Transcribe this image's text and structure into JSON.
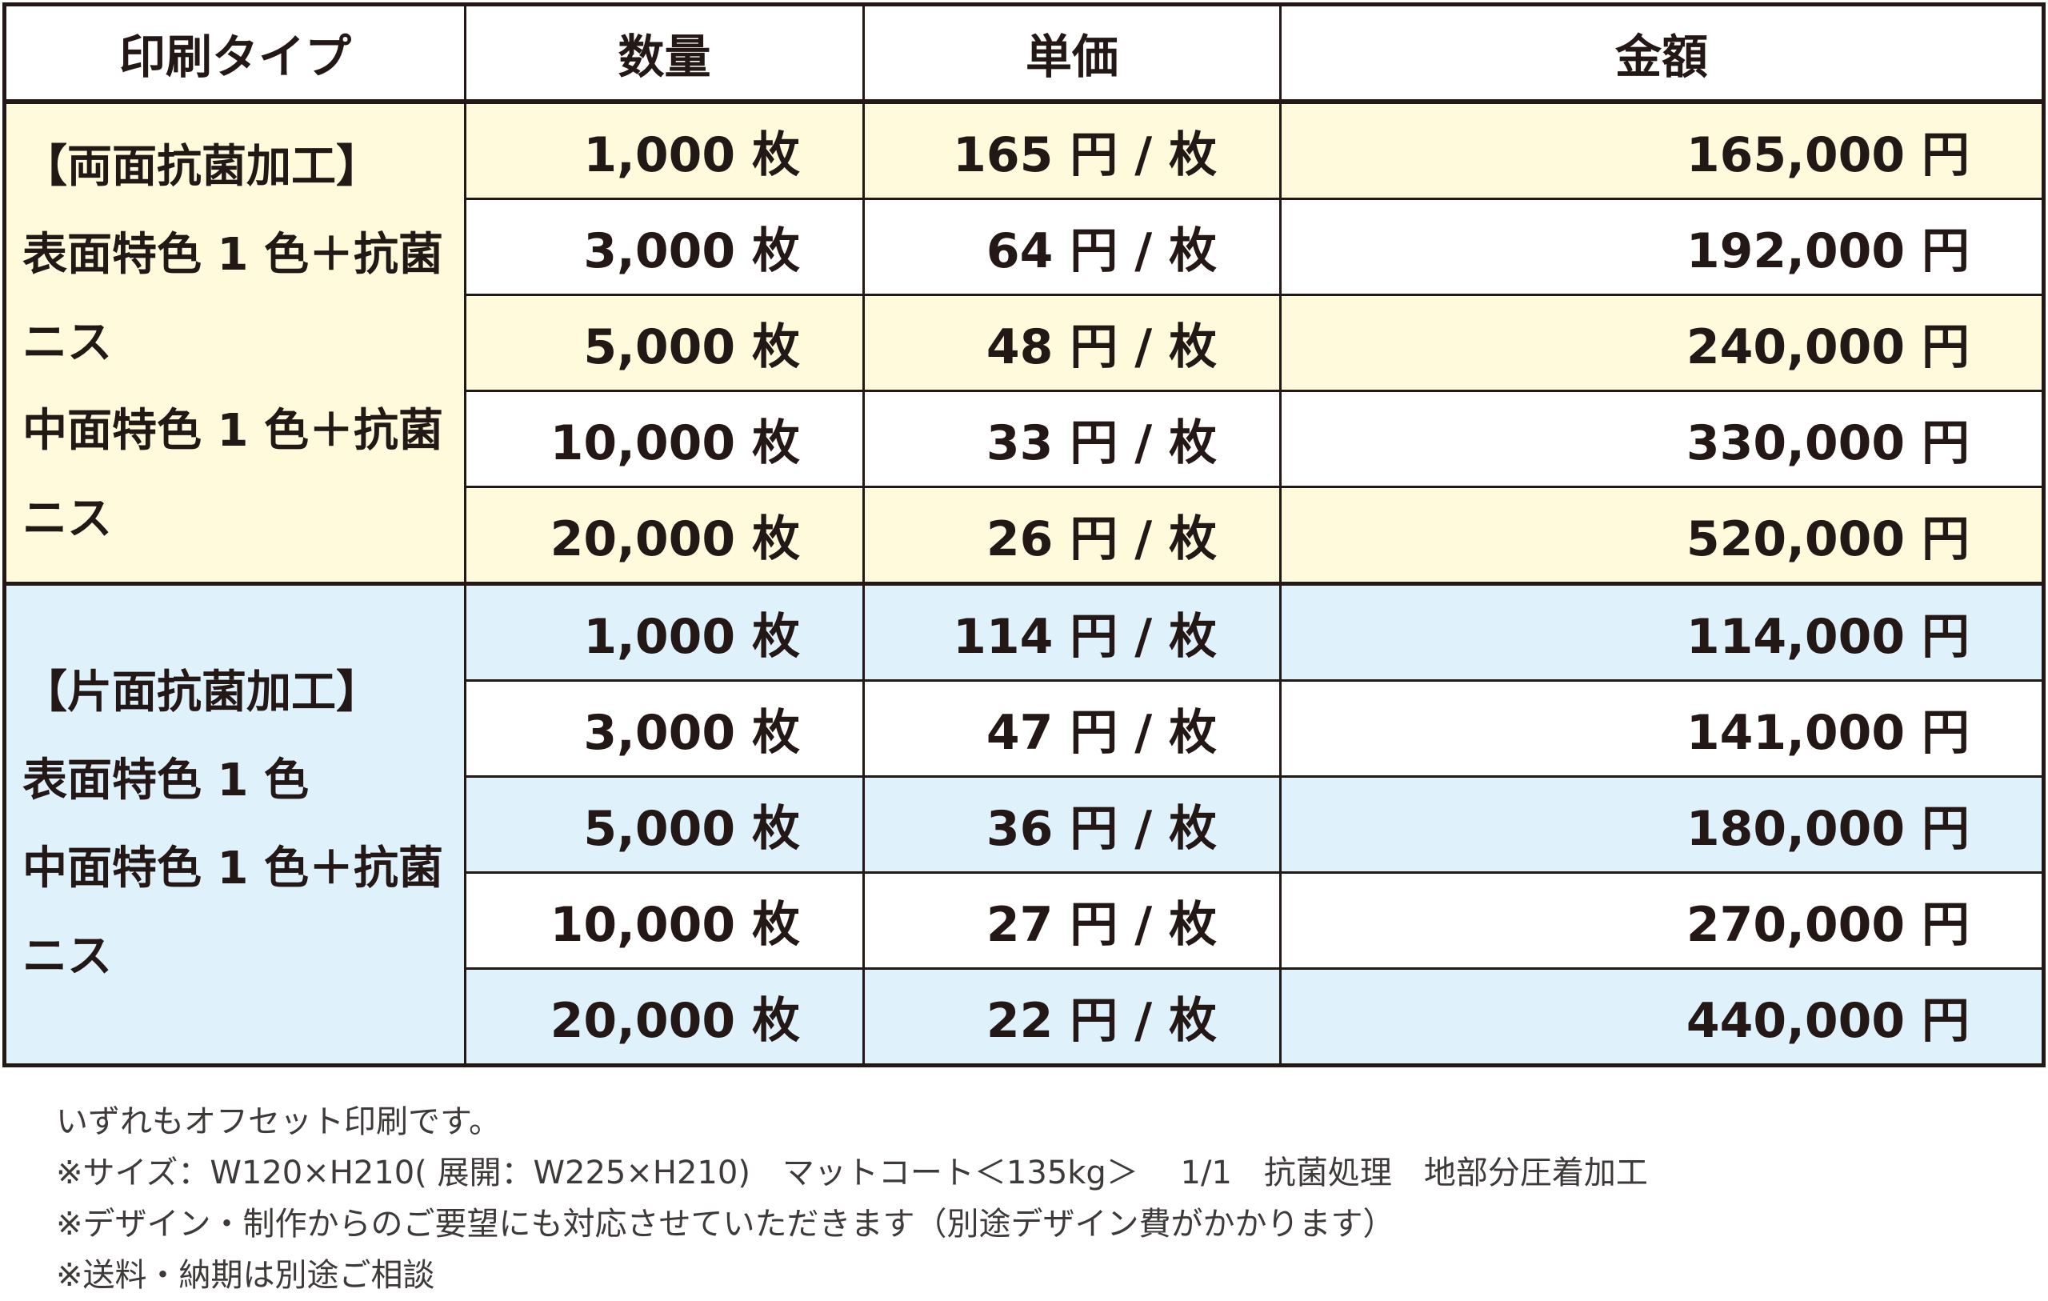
{
  "headers": [
    "印刷タイプ",
    "数量",
    "単価",
    "金額"
  ],
  "groups": [
    {
      "type_lines": [
        "【両面抗菌加工】",
        "表面特色 1 色＋抗菌ニス",
        "中面特色 1 色＋抗菌ニス"
      ],
      "color": "#fffadc",
      "rows": [
        {
          "qty": "1,000 枚",
          "unit": "165 円 / 枚",
          "amount": "165,000 円"
        },
        {
          "qty": "3,000 枚",
          "unit": "64 円 / 枚",
          "amount": "192,000 円"
        },
        {
          "qty": "5,000 枚",
          "unit": "48 円 / 枚",
          "amount": "240,000 円"
        },
        {
          "qty": "10,000 枚",
          "unit": "33 円 / 枚",
          "amount": "330,000 円"
        },
        {
          "qty": "20,000 枚",
          "unit": "26 円 / 枚",
          "amount": "520,000 円"
        }
      ]
    },
    {
      "type_lines": [
        "【片面抗菌加工】",
        "表面特色 1 色",
        "中面特色 1 色＋抗菌ニス"
      ],
      "color": "#dff1fb",
      "rows": [
        {
          "qty": "1,000 枚",
          "unit": "114 円 / 枚",
          "amount": "114,000 円"
        },
        {
          "qty": "3,000 枚",
          "unit": "47 円 / 枚",
          "amount": "141,000 円"
        },
        {
          "qty": "5,000 枚",
          "unit": "36 円 / 枚",
          "amount": "180,000 円"
        },
        {
          "qty": "10,000 枚",
          "unit": "27 円 / 枚",
          "amount": "270,000 円"
        },
        {
          "qty": "20,000 枚",
          "unit": "22 円 / 枚",
          "amount": "440,000 円"
        }
      ]
    }
  ],
  "notes": [
    "いずれもオフセット印刷です。",
    "※サイズ：W120×H210( 展開：W225×H210)　マットコート＜135kg＞　 1/1　抗菌処理　地部分圧着加工",
    "※デザイン・制作からのご要望にも対応させていただきます（別途デザイン費がかかります）",
    "※送料・納期は別途ご相談"
  ]
}
